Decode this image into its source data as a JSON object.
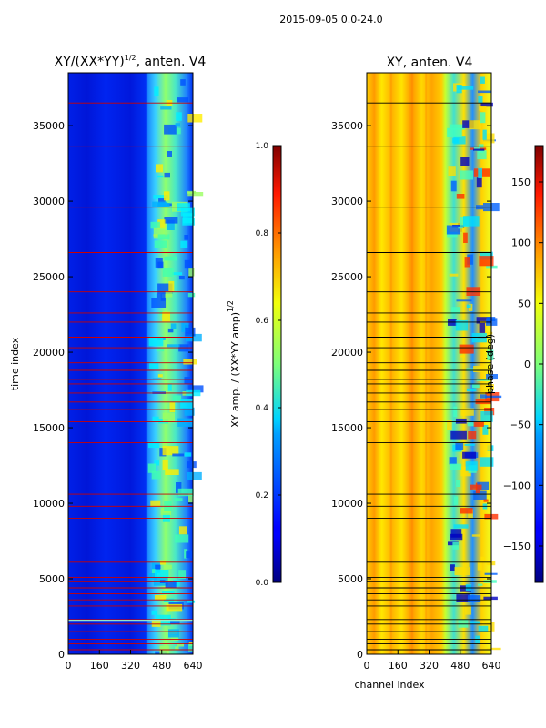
{
  "figure_title": "2015-09-05 0.0-24.0",
  "chart_data": [
    {
      "type": "heatmap",
      "panel": "left",
      "title_main": "XY/(XX*YY)",
      "title_sup": "1/2",
      "title_tail": ", anten. V4",
      "xlabel": "",
      "ylabel": "time index",
      "xlim": [
        0,
        640
      ],
      "ylim": [
        0,
        38500
      ],
      "xticks": [
        0,
        160,
        320,
        480,
        640
      ],
      "yticks": [
        0,
        5000,
        10000,
        15000,
        20000,
        25000,
        30000,
        35000
      ],
      "colormap": "jet",
      "background_value_note": "low amplitude (~0.1-0.2) everywhere, band of higher amplitude (0.3-0.6) at channels ~410-600",
      "flag_rows_color": "#cc0000",
      "flag_rows": [
        300,
        700,
        1000,
        1500,
        2000,
        2300,
        2800,
        3200,
        3600,
        4000,
        4400,
        4800,
        5100,
        6100,
        7500,
        9000,
        9800,
        10600,
        14000,
        15400,
        16200,
        16700,
        17300,
        17900,
        18200,
        18800,
        19300,
        20300,
        21000,
        22000,
        22600,
        24000,
        26600,
        29600,
        33600,
        36500
      ],
      "highlight_row": 2250,
      "colorbar": {
        "label_main": "XY amp. / (XX*YY amp)",
        "label_sup": "1/2",
        "range": [
          0.0,
          1.0
        ],
        "ticks": [
          "0.0",
          "0.2",
          "0.4",
          "0.6",
          "0.8",
          "1.0"
        ]
      }
    },
    {
      "type": "heatmap",
      "panel": "right",
      "title": "XY, anten. V4",
      "xlabel": "channel index",
      "ylabel": "",
      "xlim": [
        0,
        640
      ],
      "ylim": [
        0,
        38500
      ],
      "xticks": [
        0,
        160,
        320,
        480,
        640
      ],
      "yticks": [
        0,
        5000,
        10000,
        15000,
        20000,
        25000,
        30000,
        35000
      ],
      "colormap": "jet",
      "background_value_note": "phase mostly 40-120 deg (yellow/orange) for channels 0-400, mixed -180..180 at channels 400-640",
      "flag_rows_color": "#000000",
      "flag_rows": [
        300,
        700,
        1000,
        1500,
        2000,
        2300,
        2800,
        3200,
        3600,
        4000,
        4400,
        4800,
        5100,
        6100,
        7500,
        9000,
        9800,
        10600,
        14000,
        15400,
        16200,
        16700,
        17300,
        17900,
        18200,
        18800,
        19300,
        20300,
        21000,
        22000,
        22600,
        24000,
        26600,
        29600,
        33600,
        36500
      ],
      "colorbar": {
        "label": "phase (deg)",
        "range": [
          -180,
          180
        ],
        "ticks": [
          "150",
          "100",
          "50",
          "0",
          "−50",
          "−100",
          "−150"
        ],
        "tick_values": [
          150,
          100,
          50,
          0,
          -50,
          -100,
          -150
        ]
      }
    }
  ]
}
